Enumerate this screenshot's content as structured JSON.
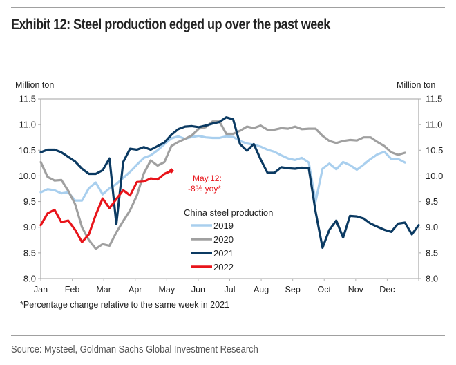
{
  "header": {
    "title": "Exhibit 12: Steel production edged up over the past week"
  },
  "footer": {
    "footnote": "*Percentage change relative to the same week in 2021",
    "source": "Source: Mysteel, Goldman Sachs Global Investment Research"
  },
  "chart_data": {
    "type": "line",
    "title": "Exhibit 12: Steel production edged up over the past week",
    "xlabel": "",
    "ylabel": "Million ton",
    "ylabel_right": "Million ton",
    "ylim": [
      8.0,
      11.5
    ],
    "yticks": [
      8.0,
      8.5,
      9.0,
      9.5,
      10.0,
      10.5,
      11.0,
      11.5
    ],
    "ytick_labels": [
      "8.0",
      "8.5",
      "9.0",
      "9.5",
      "10.0",
      "10.5",
      "11.0",
      "11.5"
    ],
    "x_unit": "week of year",
    "xlim": [
      1,
      52
    ],
    "categories": [
      "Jan",
      "Feb",
      "Mar",
      "Apr",
      "May",
      "Jun",
      "Jul",
      "Aug",
      "Sep",
      "Oct",
      "Nov",
      "Dec"
    ],
    "grid": false,
    "dual_axis": true,
    "legend": {
      "title": "China steel production",
      "position": "center"
    },
    "series": [
      {
        "name": "2019",
        "color": "#a9cfee",
        "values": [
          9.68,
          9.74,
          9.72,
          9.66,
          9.68,
          9.52,
          9.52,
          9.76,
          9.87,
          9.64,
          9.76,
          9.84,
          9.96,
          10.08,
          10.22,
          10.35,
          10.4,
          10.5,
          10.62,
          10.73,
          10.77,
          10.72,
          10.76,
          10.78,
          10.75,
          10.74,
          10.74,
          10.77,
          10.76,
          10.68,
          10.63,
          10.61,
          10.57,
          10.51,
          10.47,
          10.4,
          10.34,
          10.31,
          10.35,
          10.26,
          9.5,
          10.14,
          10.24,
          10.13,
          10.27,
          10.21,
          10.12,
          10.22,
          10.33,
          10.42,
          10.47,
          10.33,
          10.33,
          10.26
        ]
      },
      {
        "name": "2020",
        "color": "#a0a0a0",
        "values": [
          10.27,
          9.98,
          9.91,
          9.92,
          9.71,
          9.45,
          9.0,
          8.75,
          8.58,
          8.67,
          8.64,
          8.9,
          9.12,
          9.33,
          9.62,
          10.05,
          10.3,
          10.2,
          10.27,
          10.58,
          10.66,
          10.72,
          10.79,
          10.92,
          10.95,
          11.06,
          11.06,
          10.82,
          10.82,
          10.88,
          10.96,
          10.93,
          10.98,
          10.9,
          10.9,
          10.93,
          10.92,
          10.96,
          10.91,
          10.92,
          10.92,
          10.78,
          10.68,
          10.64,
          10.68,
          10.7,
          10.69,
          10.75,
          10.75,
          10.66,
          10.58,
          10.46,
          10.41,
          10.45
        ]
      },
      {
        "name": "2021",
        "color": "#0b3a62",
        "values": [
          10.46,
          10.51,
          10.51,
          10.46,
          10.37,
          10.28,
          10.14,
          10.04,
          10.04,
          10.11,
          10.34,
          9.06,
          10.27,
          10.53,
          10.51,
          10.56,
          10.51,
          10.58,
          10.65,
          10.8,
          10.91,
          10.96,
          10.97,
          10.95,
          10.98,
          11.02,
          11.05,
          11.14,
          11.1,
          10.62,
          10.49,
          10.62,
          10.32,
          10.06,
          10.06,
          10.17,
          10.15,
          10.14,
          10.16,
          10.15,
          9.3,
          8.6,
          8.95,
          9.13,
          8.8,
          9.22,
          9.21,
          9.17,
          9.07,
          9.01,
          8.95,
          8.91,
          9.07,
          9.09,
          8.86,
          9.04
        ]
      },
      {
        "name": "2022",
        "color": "#e8141a",
        "values": [
          9.04,
          9.27,
          9.34,
          9.1,
          9.13,
          8.95,
          8.71,
          8.86,
          9.24,
          9.56,
          9.37,
          9.55,
          9.72,
          9.62,
          9.88,
          9.89,
          9.95,
          9.93,
          10.04,
          10.1
        ]
      }
    ],
    "annotations": [
      {
        "text_line1": "May.12:",
        "text_line2": "-8% yoy*",
        "series": "2022",
        "point": "last",
        "color": "#e8141a"
      }
    ]
  }
}
